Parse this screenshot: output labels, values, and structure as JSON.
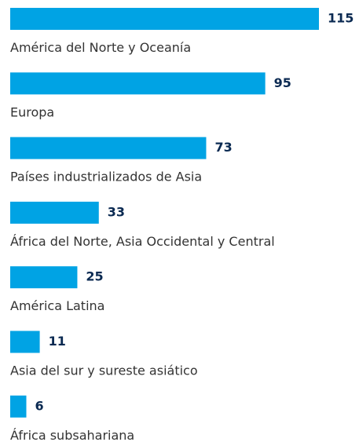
{
  "chart_data": {
    "type": "bar",
    "orientation": "horizontal",
    "categories": [
      "América del Norte y Oceanía",
      "Europa",
      "Países industrializados de Asia",
      "África del Norte, Asia Occidental y Central",
      "América Latina",
      "Asia del sur y sureste asiático",
      "África subsahariana"
    ],
    "values": [
      115,
      95,
      73,
      33,
      25,
      11,
      6
    ],
    "color": "#00a3e4"
  }
}
